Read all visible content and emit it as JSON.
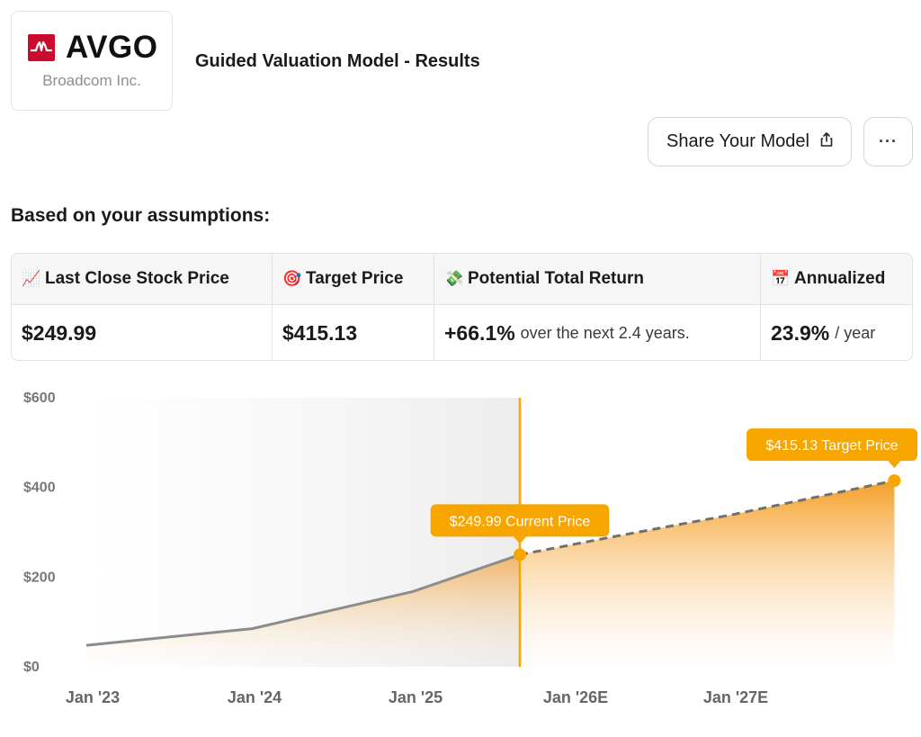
{
  "header": {
    "ticker": "AVGO",
    "company": "Broadcom Inc.",
    "title": "Guided Valuation Model - Results",
    "brand_color": "#cc092f"
  },
  "actions": {
    "share_label": "Share Your Model",
    "share_icon": "share-icon",
    "more_label": "···"
  },
  "assumptions_heading": "Based on your assumptions:",
  "stats": {
    "last_close": {
      "icon": "📈",
      "label": "Last Close Stock Price",
      "value": "$249.99"
    },
    "target": {
      "icon": "🎯",
      "label": "Target Price",
      "value": "$415.13"
    },
    "total_return": {
      "icon": "💸",
      "label": "Potential Total Return",
      "value": "+66.1%",
      "suffix": "over the next 2.4 years."
    },
    "annualized": {
      "icon": "📅",
      "label": "Annualized",
      "value": "23.9%",
      "suffix": "/ year"
    }
  },
  "chart_data": {
    "type": "area",
    "x_ticks": [
      "Jan '23",
      "Jan '24",
      "Jan '25",
      "Jan '26E",
      "Jan '27E"
    ],
    "y_ticks": [
      "$0",
      "$200",
      "$400",
      "$600"
    ],
    "ylim": [
      0,
      600
    ],
    "xlim": [
      "2023-01-01",
      "2028-01-01"
    ],
    "historical": {
      "x": [
        "2023-01-01",
        "2024-01-01",
        "2025-01-01",
        "2025-09-01"
      ],
      "y": [
        48,
        85,
        168,
        249.99
      ]
    },
    "projected": {
      "x": [
        "2025-09-01",
        "2026-04-01",
        "2027-01-01",
        "2028-01-01"
      ],
      "y": [
        249.99,
        290,
        340,
        415.13
      ]
    },
    "annotations": [
      {
        "label": "$249.99 Current Price",
        "x": "2025-09-01",
        "y": 249.99
      },
      {
        "label": "$415.13 Target Price",
        "x": "2028-01-01",
        "y": 415.13
      }
    ],
    "colors": {
      "accent": "#f7a600",
      "historical_line": "#8c8c8c",
      "projected_line": "#707070"
    }
  }
}
